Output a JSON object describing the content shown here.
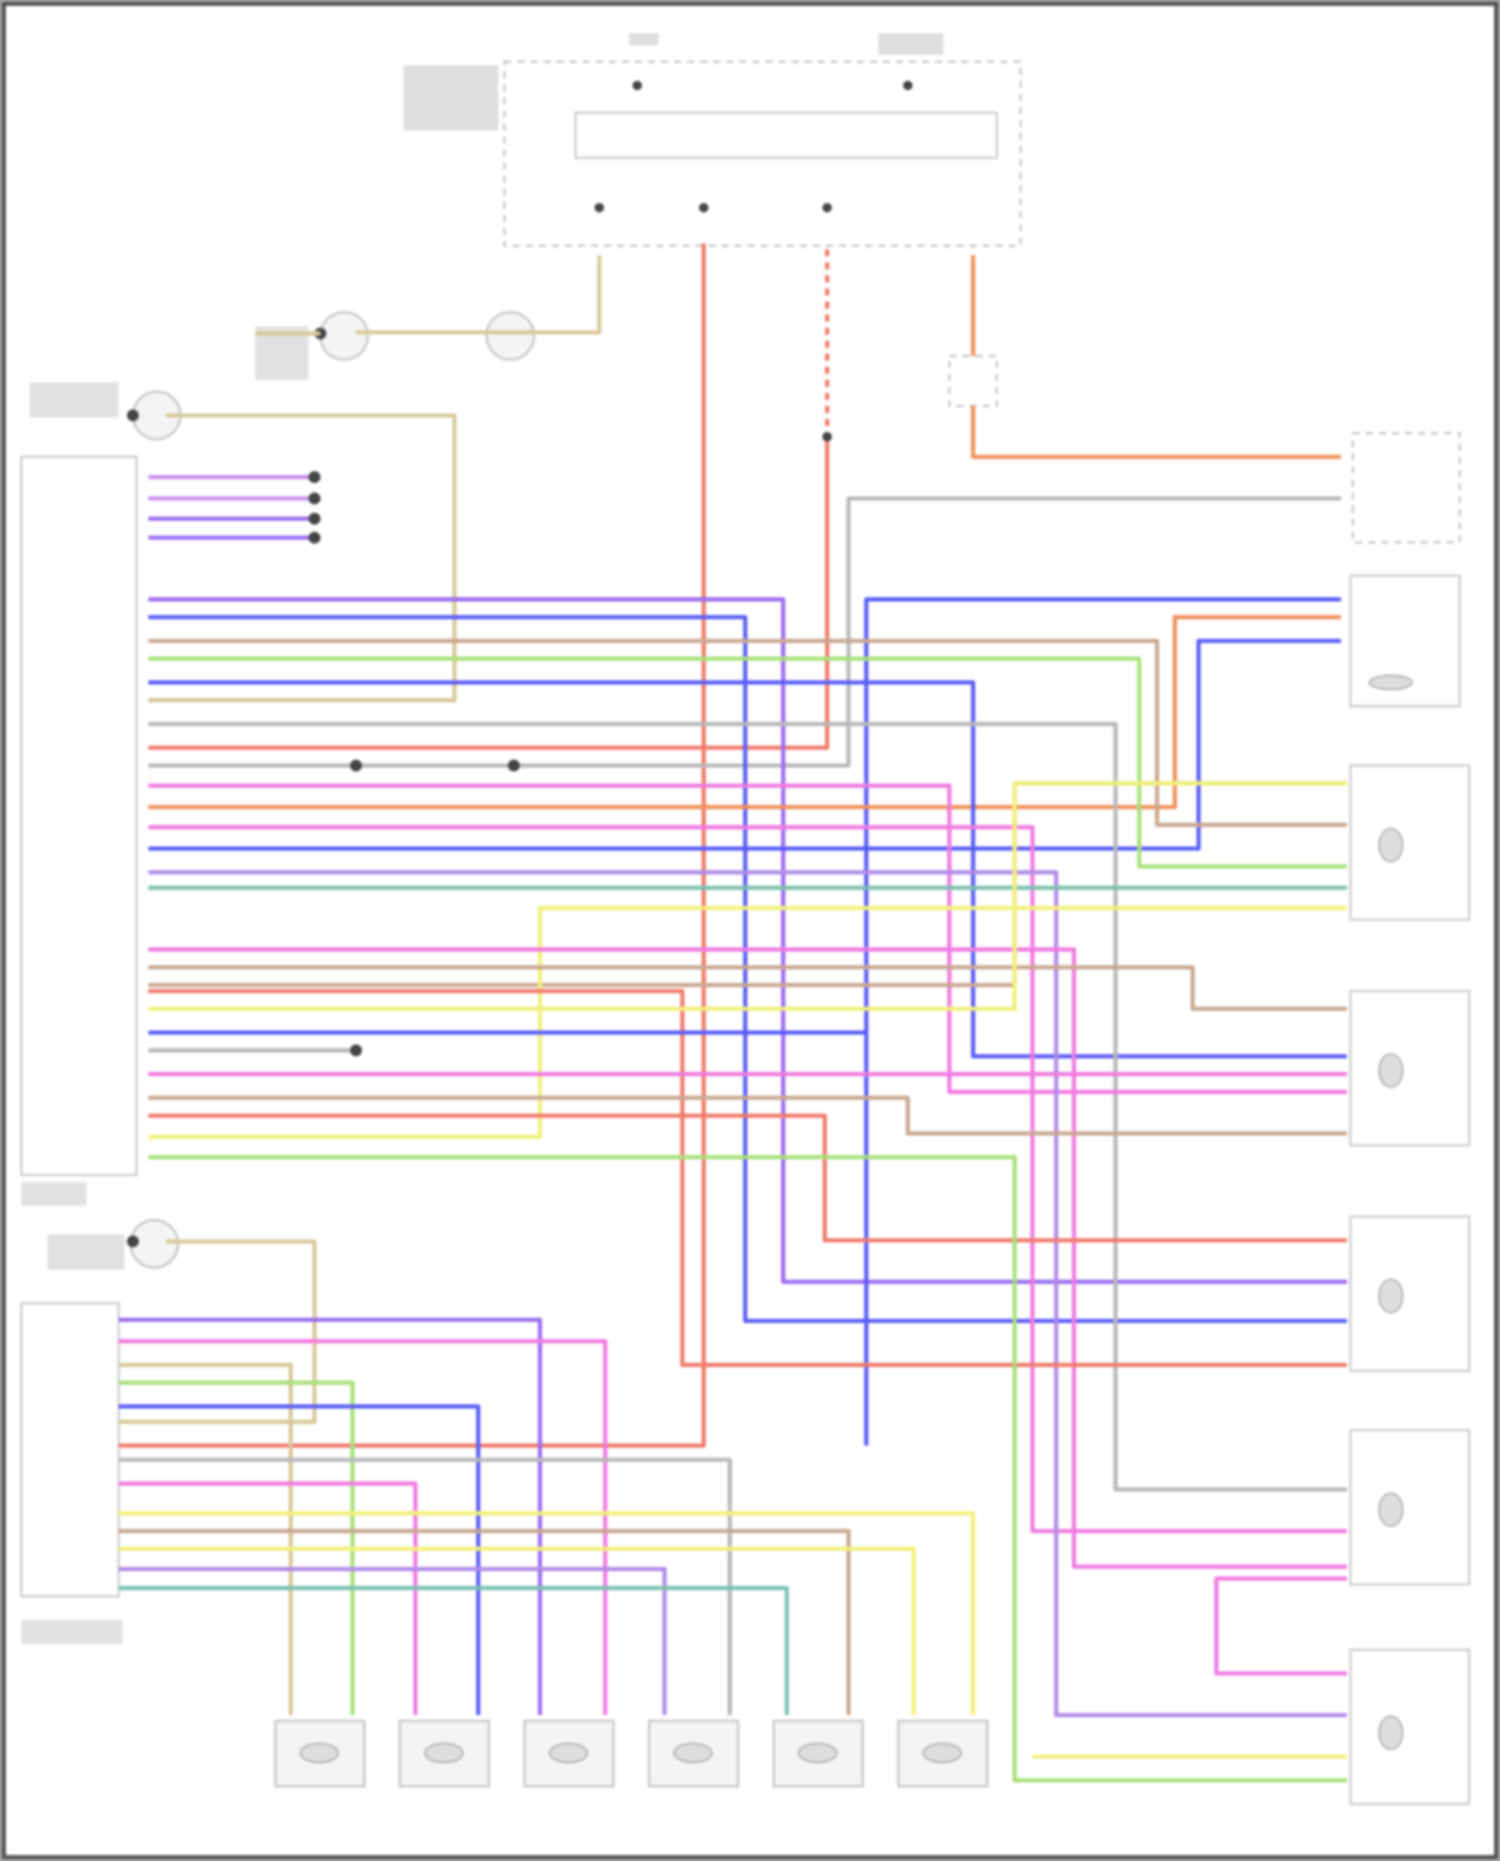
{
  "diagram": {
    "type": "wiring-diagram",
    "text_legible": false,
    "wire_colors": {
      "purple": "#9b6bf0",
      "blue": "#5a5cf5",
      "violet": "#b08ae8",
      "pink": "#f07ae0",
      "red": "#f07a6a",
      "orange": "#f0905a",
      "tan": "#d8c89a",
      "yellow": "#f2f07a",
      "green": "#a8e07a",
      "teal": "#7ac0b0",
      "gray": "#b8b8b8",
      "brown": "#c8a890"
    },
    "component_count": {
      "left_modules": 2,
      "right_motors": 6,
      "bottom_motors": 6
    }
  }
}
